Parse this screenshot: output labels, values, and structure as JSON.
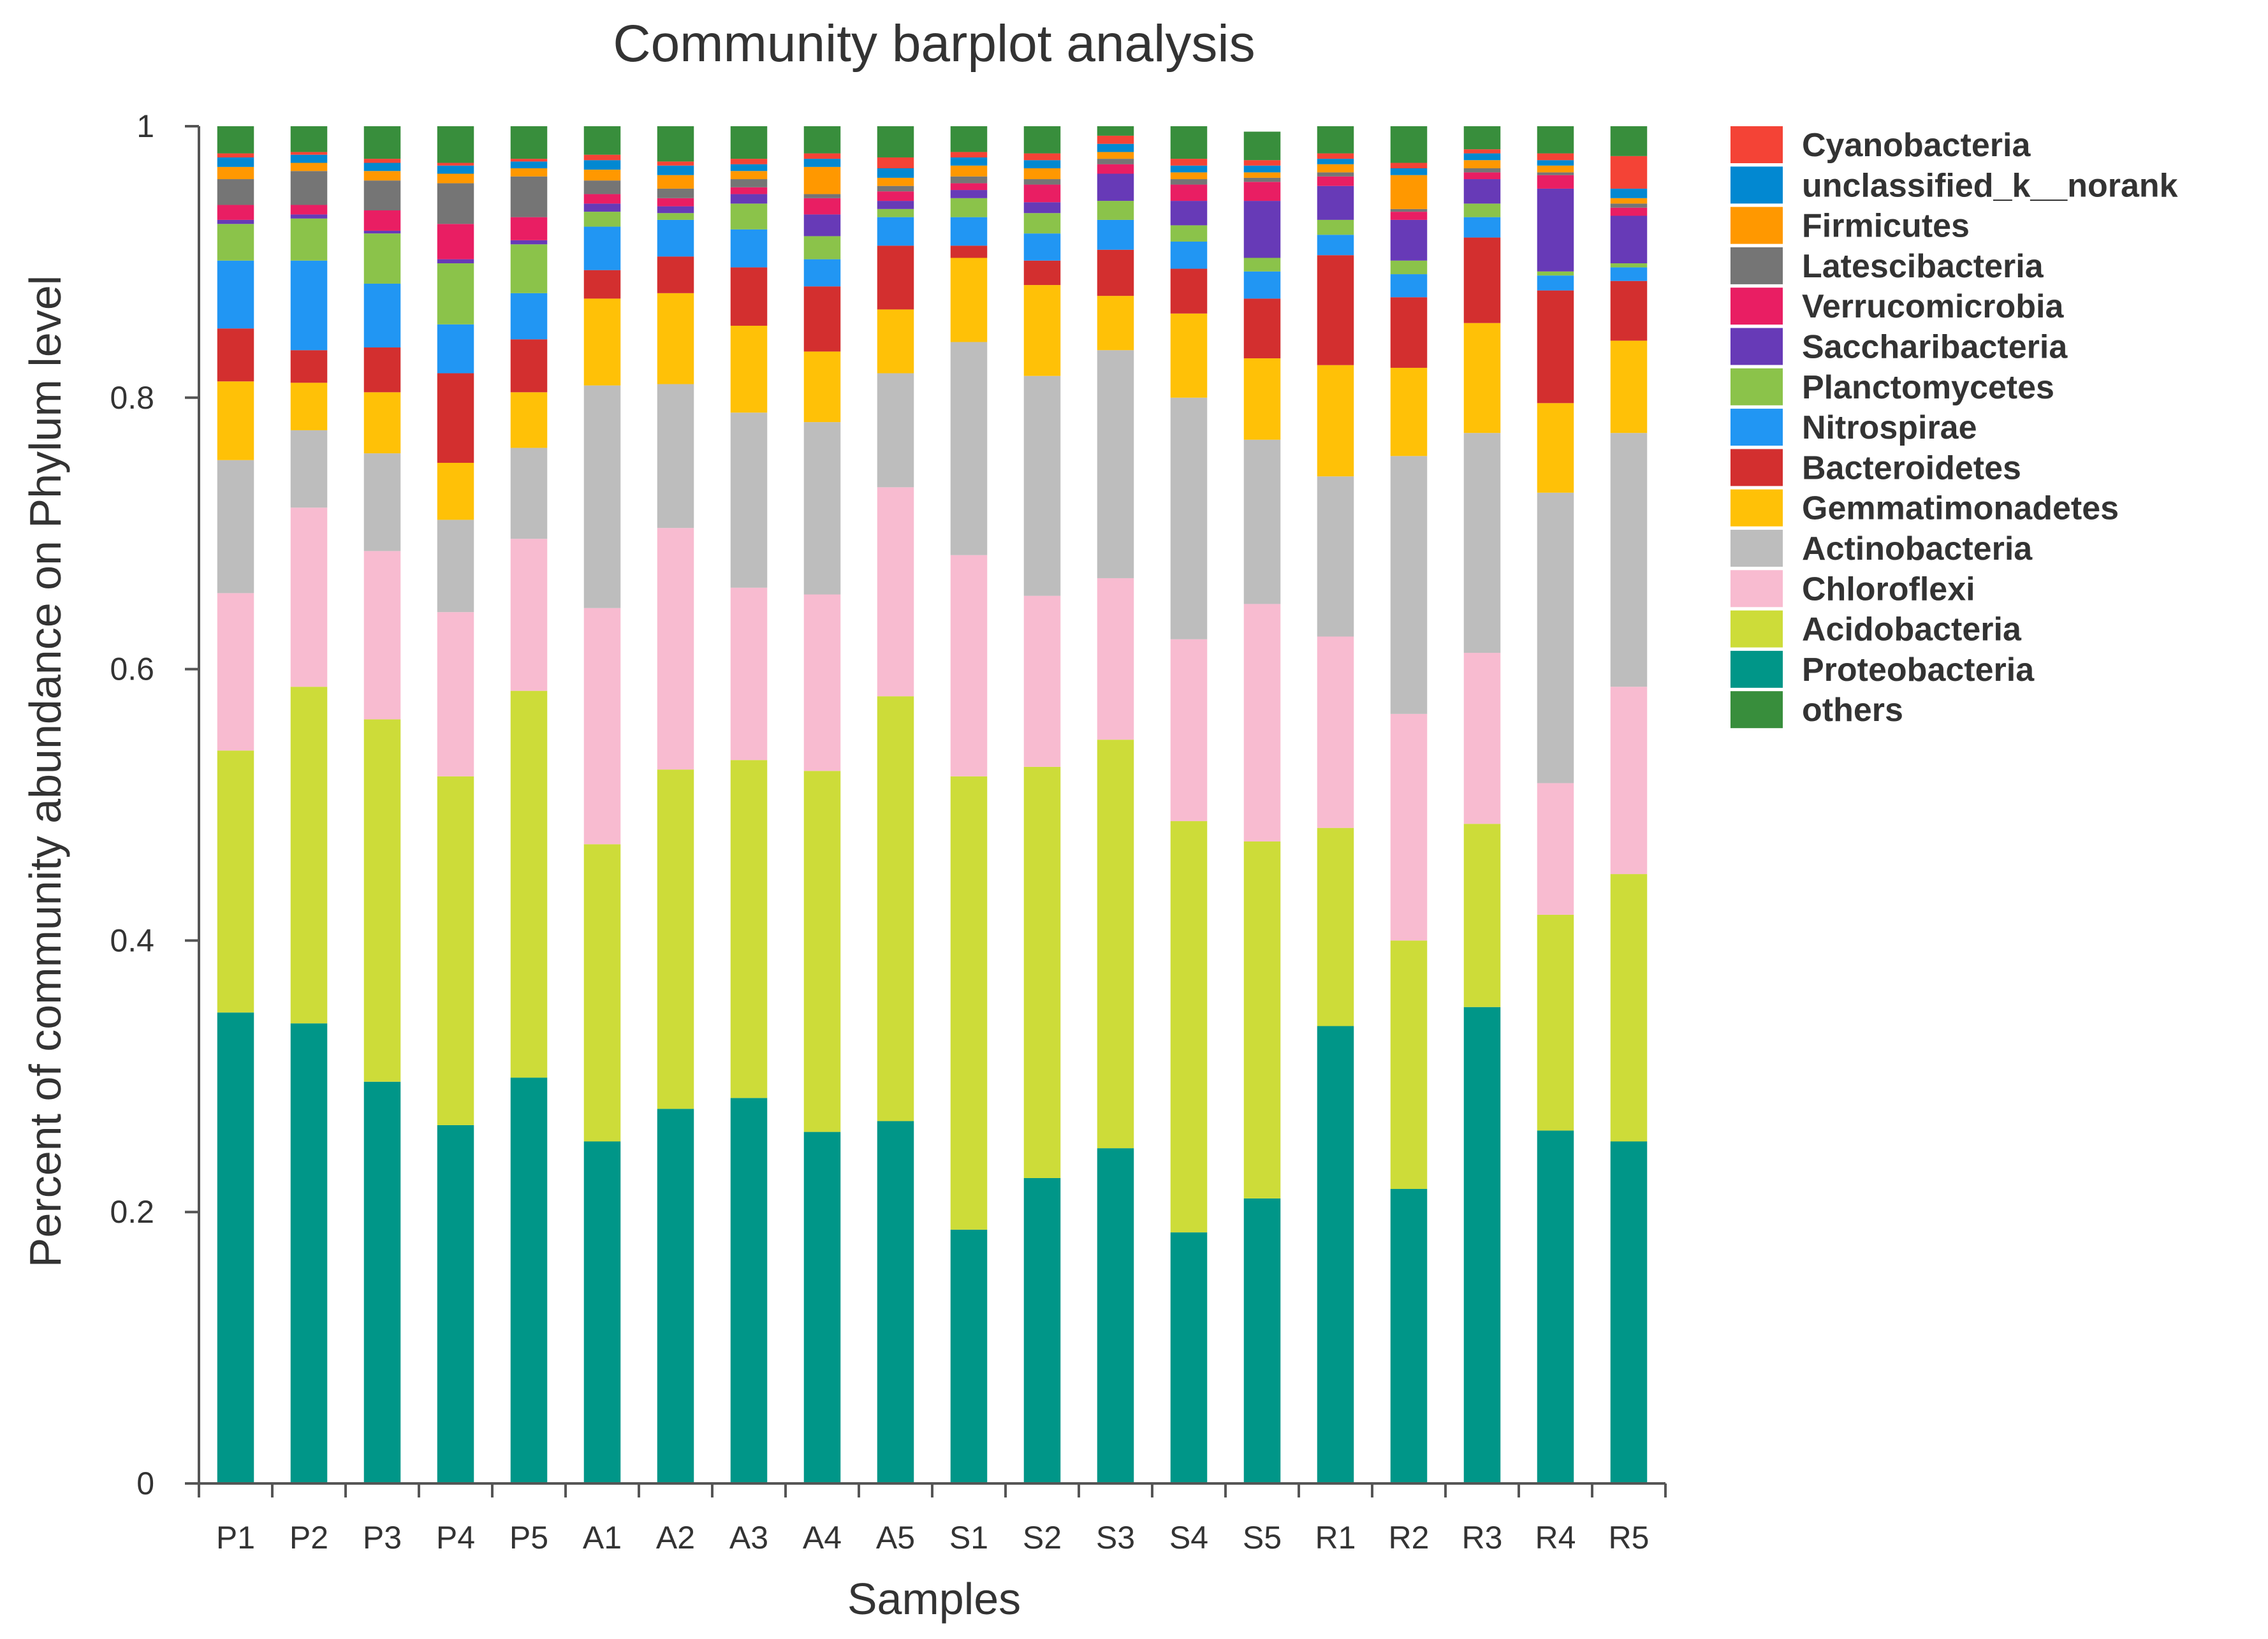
{
  "chart_data": {
    "type": "bar",
    "stacked": true,
    "title": "Community barplot analysis",
    "xlabel": "Samples",
    "ylabel": "Percent of community abundance on Phylum level",
    "ylim": [
      0,
      1
    ],
    "yticks": [
      0,
      0.2,
      0.4,
      0.6,
      0.8,
      1
    ],
    "ytick_labels": [
      "0",
      "0.2",
      "0.4",
      "0.6",
      "0.8",
      "1"
    ],
    "legend_position": "right",
    "categories": [
      "P1",
      "P2",
      "P3",
      "P4",
      "P5",
      "A1",
      "A2",
      "A3",
      "A4",
      "A5",
      "S1",
      "S2",
      "S3",
      "S4",
      "S5",
      "R1",
      "R2",
      "R3",
      "R4",
      "R5"
    ],
    "series": [
      {
        "name": "Proteobacteria",
        "color": "#009688",
        "values": [
          0.347,
          0.339,
          0.296,
          0.264,
          0.299,
          0.252,
          0.276,
          0.284,
          0.259,
          0.267,
          0.187,
          0.225,
          0.247,
          0.185,
          0.21,
          0.337,
          0.217,
          0.351,
          0.26,
          0.252
        ]
      },
      {
        "name": "Acidobacteria",
        "color": "#CDDC39",
        "values": [
          0.193,
          0.248,
          0.267,
          0.257,
          0.285,
          0.219,
          0.25,
          0.249,
          0.266,
          0.313,
          0.334,
          0.303,
          0.301,
          0.303,
          0.263,
          0.146,
          0.183,
          0.135,
          0.159,
          0.197
        ]
      },
      {
        "name": "Chloroflexi",
        "color": "#F8BBD0",
        "values": [
          0.116,
          0.132,
          0.124,
          0.121,
          0.112,
          0.174,
          0.178,
          0.127,
          0.13,
          0.154,
          0.163,
          0.126,
          0.119,
          0.134,
          0.175,
          0.141,
          0.167,
          0.126,
          0.097,
          0.138
        ]
      },
      {
        "name": "Actinobacteria",
        "color": "#BDBDBD",
        "values": [
          0.098,
          0.057,
          0.072,
          0.068,
          0.067,
          0.164,
          0.106,
          0.129,
          0.127,
          0.084,
          0.157,
          0.162,
          0.168,
          0.178,
          0.121,
          0.118,
          0.19,
          0.162,
          0.214,
          0.187
        ]
      },
      {
        "name": "Gemmatimonadetes",
        "color": "#FFC107",
        "values": [
          0.058,
          0.035,
          0.045,
          0.042,
          0.041,
          0.064,
          0.067,
          0.064,
          0.052,
          0.047,
          0.062,
          0.067,
          0.04,
          0.062,
          0.06,
          0.082,
          0.065,
          0.081,
          0.066,
          0.068
        ]
      },
      {
        "name": "Bacteroidetes",
        "color": "#D32F2F",
        "values": [
          0.039,
          0.024,
          0.033,
          0.066,
          0.039,
          0.021,
          0.027,
          0.043,
          0.048,
          0.047,
          0.009,
          0.018,
          0.034,
          0.033,
          0.044,
          0.081,
          0.052,
          0.063,
          0.083,
          0.044
        ]
      },
      {
        "name": "Nitrospirae",
        "color": "#2196F3",
        "values": [
          0.05,
          0.066,
          0.047,
          0.036,
          0.034,
          0.032,
          0.027,
          0.028,
          0.02,
          0.021,
          0.021,
          0.02,
          0.022,
          0.02,
          0.02,
          0.015,
          0.017,
          0.015,
          0.011,
          0.01
        ]
      },
      {
        "name": "Planctomycetes",
        "color": "#8BC34A",
        "values": [
          0.027,
          0.031,
          0.037,
          0.045,
          0.036,
          0.011,
          0.005,
          0.019,
          0.017,
          0.006,
          0.014,
          0.015,
          0.014,
          0.012,
          0.01,
          0.011,
          0.01,
          0.01,
          0.003,
          0.003
        ]
      },
      {
        "name": "Saccharibacteria",
        "color": "#673AB7",
        "values": [
          0.003,
          0.003,
          0.002,
          0.003,
          0.003,
          0.006,
          0.005,
          0.007,
          0.016,
          0.006,
          0.006,
          0.008,
          0.02,
          0.018,
          0.042,
          0.025,
          0.03,
          0.018,
          0.061,
          0.035
        ]
      },
      {
        "name": "Verrucomicrobia",
        "color": "#E91E63",
        "values": [
          0.011,
          0.007,
          0.015,
          0.026,
          0.017,
          0.007,
          0.006,
          0.005,
          0.012,
          0.007,
          0.005,
          0.013,
          0.007,
          0.012,
          0.014,
          0.007,
          0.006,
          0.005,
          0.01,
          0.006
        ]
      },
      {
        "name": "Latescibacteria",
        "color": "#757575",
        "values": [
          0.019,
          0.025,
          0.022,
          0.03,
          0.03,
          0.01,
          0.007,
          0.006,
          0.003,
          0.004,
          0.005,
          0.004,
          0.004,
          0.004,
          0.003,
          0.003,
          0.002,
          0.003,
          0.002,
          0.003
        ]
      },
      {
        "name": "Firmicutes",
        "color": "#FF9800",
        "values": [
          0.009,
          0.006,
          0.007,
          0.007,
          0.006,
          0.008,
          0.01,
          0.006,
          0.02,
          0.006,
          0.008,
          0.008,
          0.005,
          0.005,
          0.004,
          0.006,
          0.025,
          0.006,
          0.005,
          0.004
        ]
      },
      {
        "name": "unclassified_k__norank",
        "color": "#0288D1",
        "values": [
          0.007,
          0.006,
          0.006,
          0.006,
          0.005,
          0.007,
          0.007,
          0.005,
          0.006,
          0.007,
          0.006,
          0.006,
          0.006,
          0.005,
          0.005,
          0.004,
          0.005,
          0.005,
          0.004,
          0.007
        ]
      },
      {
        "name": "Cyanobacteria",
        "color": "#F44336",
        "values": [
          0.003,
          0.002,
          0.003,
          0.002,
          0.002,
          0.004,
          0.003,
          0.004,
          0.004,
          0.008,
          0.004,
          0.005,
          0.006,
          0.005,
          0.004,
          0.004,
          0.004,
          0.003,
          0.005,
          0.024
        ]
      },
      {
        "name": "others",
        "color": "#388E3C",
        "values": [
          0.02,
          0.019,
          0.024,
          0.027,
          0.024,
          0.021,
          0.026,
          0.024,
          0.02,
          0.023,
          0.019,
          0.02,
          0.007,
          0.024,
          0.021,
          0.02,
          0.027,
          0.017,
          0.02,
          0.022
        ]
      }
    ],
    "legend_order": [
      "Cyanobacteria",
      "unclassified_k__norank",
      "Firmicutes",
      "Latescibacteria",
      "Verrucomicrobia",
      "Saccharibacteria",
      "Planctomycetes",
      "Nitrospirae",
      "Bacteroidetes",
      "Gemmatimonadetes",
      "Actinobacteria",
      "Chloroflexi",
      "Acidobacteria",
      "Proteobacteria",
      "others"
    ]
  }
}
